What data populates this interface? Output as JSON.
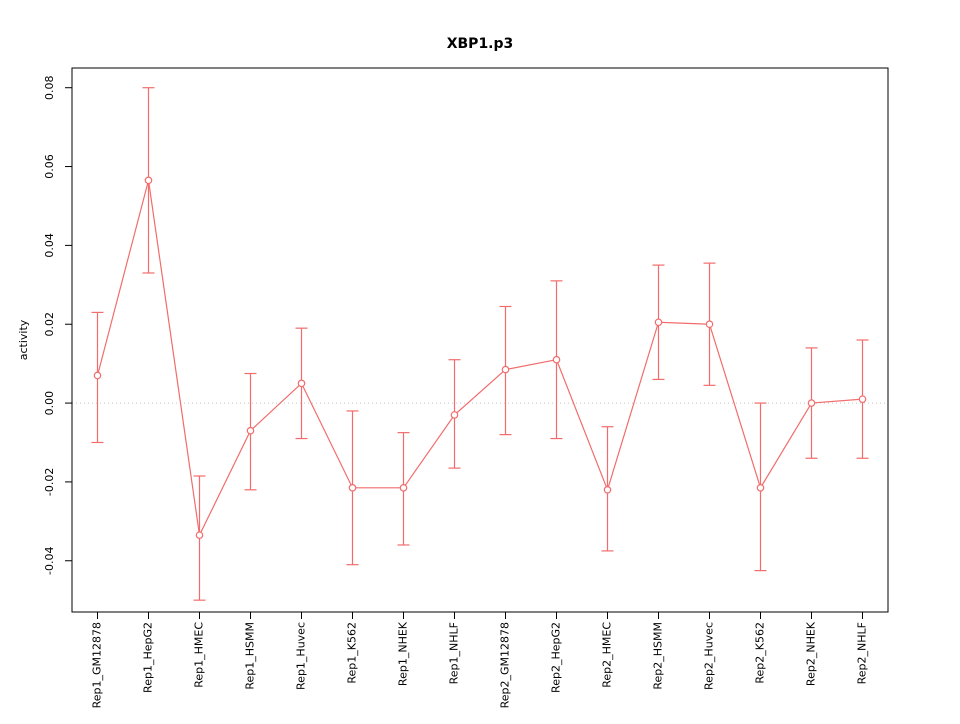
{
  "chart": {
    "title": "XBP1.p3",
    "ylabel": "activity"
  },
  "chart_data": {
    "type": "line",
    "title": "XBP1.p3",
    "xlabel": "",
    "ylabel": "activity",
    "legend": "none",
    "grid": "dotted horizontal line at y=0 only",
    "point_style": "open-circle",
    "error_bars": true,
    "color": "#f26c6c",
    "zero_line_color": "#c8c8c8",
    "ylim": [
      -0.053,
      0.085
    ],
    "yticks": [
      -0.04,
      -0.02,
      0.0,
      0.02,
      0.04,
      0.06,
      0.08
    ],
    "ytick_labels": [
      "-0.04",
      "-0.02",
      "0.00",
      "0.02",
      "0.04",
      "0.06",
      "0.08"
    ],
    "categories": [
      "Rep1_GM12878",
      "Rep1_HepG2",
      "Rep1_HMEC",
      "Rep1_HSMM",
      "Rep1_Huvec",
      "Rep1_K562",
      "Rep1_NHEK",
      "Rep1_NHLF",
      "Rep2_GM12878",
      "Rep2_HepG2",
      "Rep2_HMEC",
      "Rep2_HSMM",
      "Rep2_Huvec",
      "Rep2_K562",
      "Rep2_NHEK",
      "Rep2_NHLF"
    ],
    "series": [
      {
        "name": "activity",
        "values": [
          0.007,
          0.0565,
          -0.0335,
          -0.007,
          0.005,
          -0.0215,
          -0.0215,
          -0.003,
          0.0085,
          0.011,
          -0.022,
          0.0205,
          0.02,
          -0.0215,
          0.0,
          0.001
        ],
        "err_low": [
          -0.01,
          0.033,
          -0.05,
          -0.022,
          -0.009,
          -0.041,
          -0.036,
          -0.0165,
          -0.008,
          -0.009,
          -0.0375,
          0.006,
          0.0045,
          -0.0425,
          -0.014,
          -0.014
        ],
        "err_high": [
          0.023,
          0.08,
          -0.0185,
          0.0075,
          0.019,
          -0.002,
          -0.0075,
          0.011,
          0.0245,
          0.031,
          -0.006,
          0.035,
          0.0355,
          0.0,
          0.014,
          0.016
        ]
      }
    ]
  }
}
